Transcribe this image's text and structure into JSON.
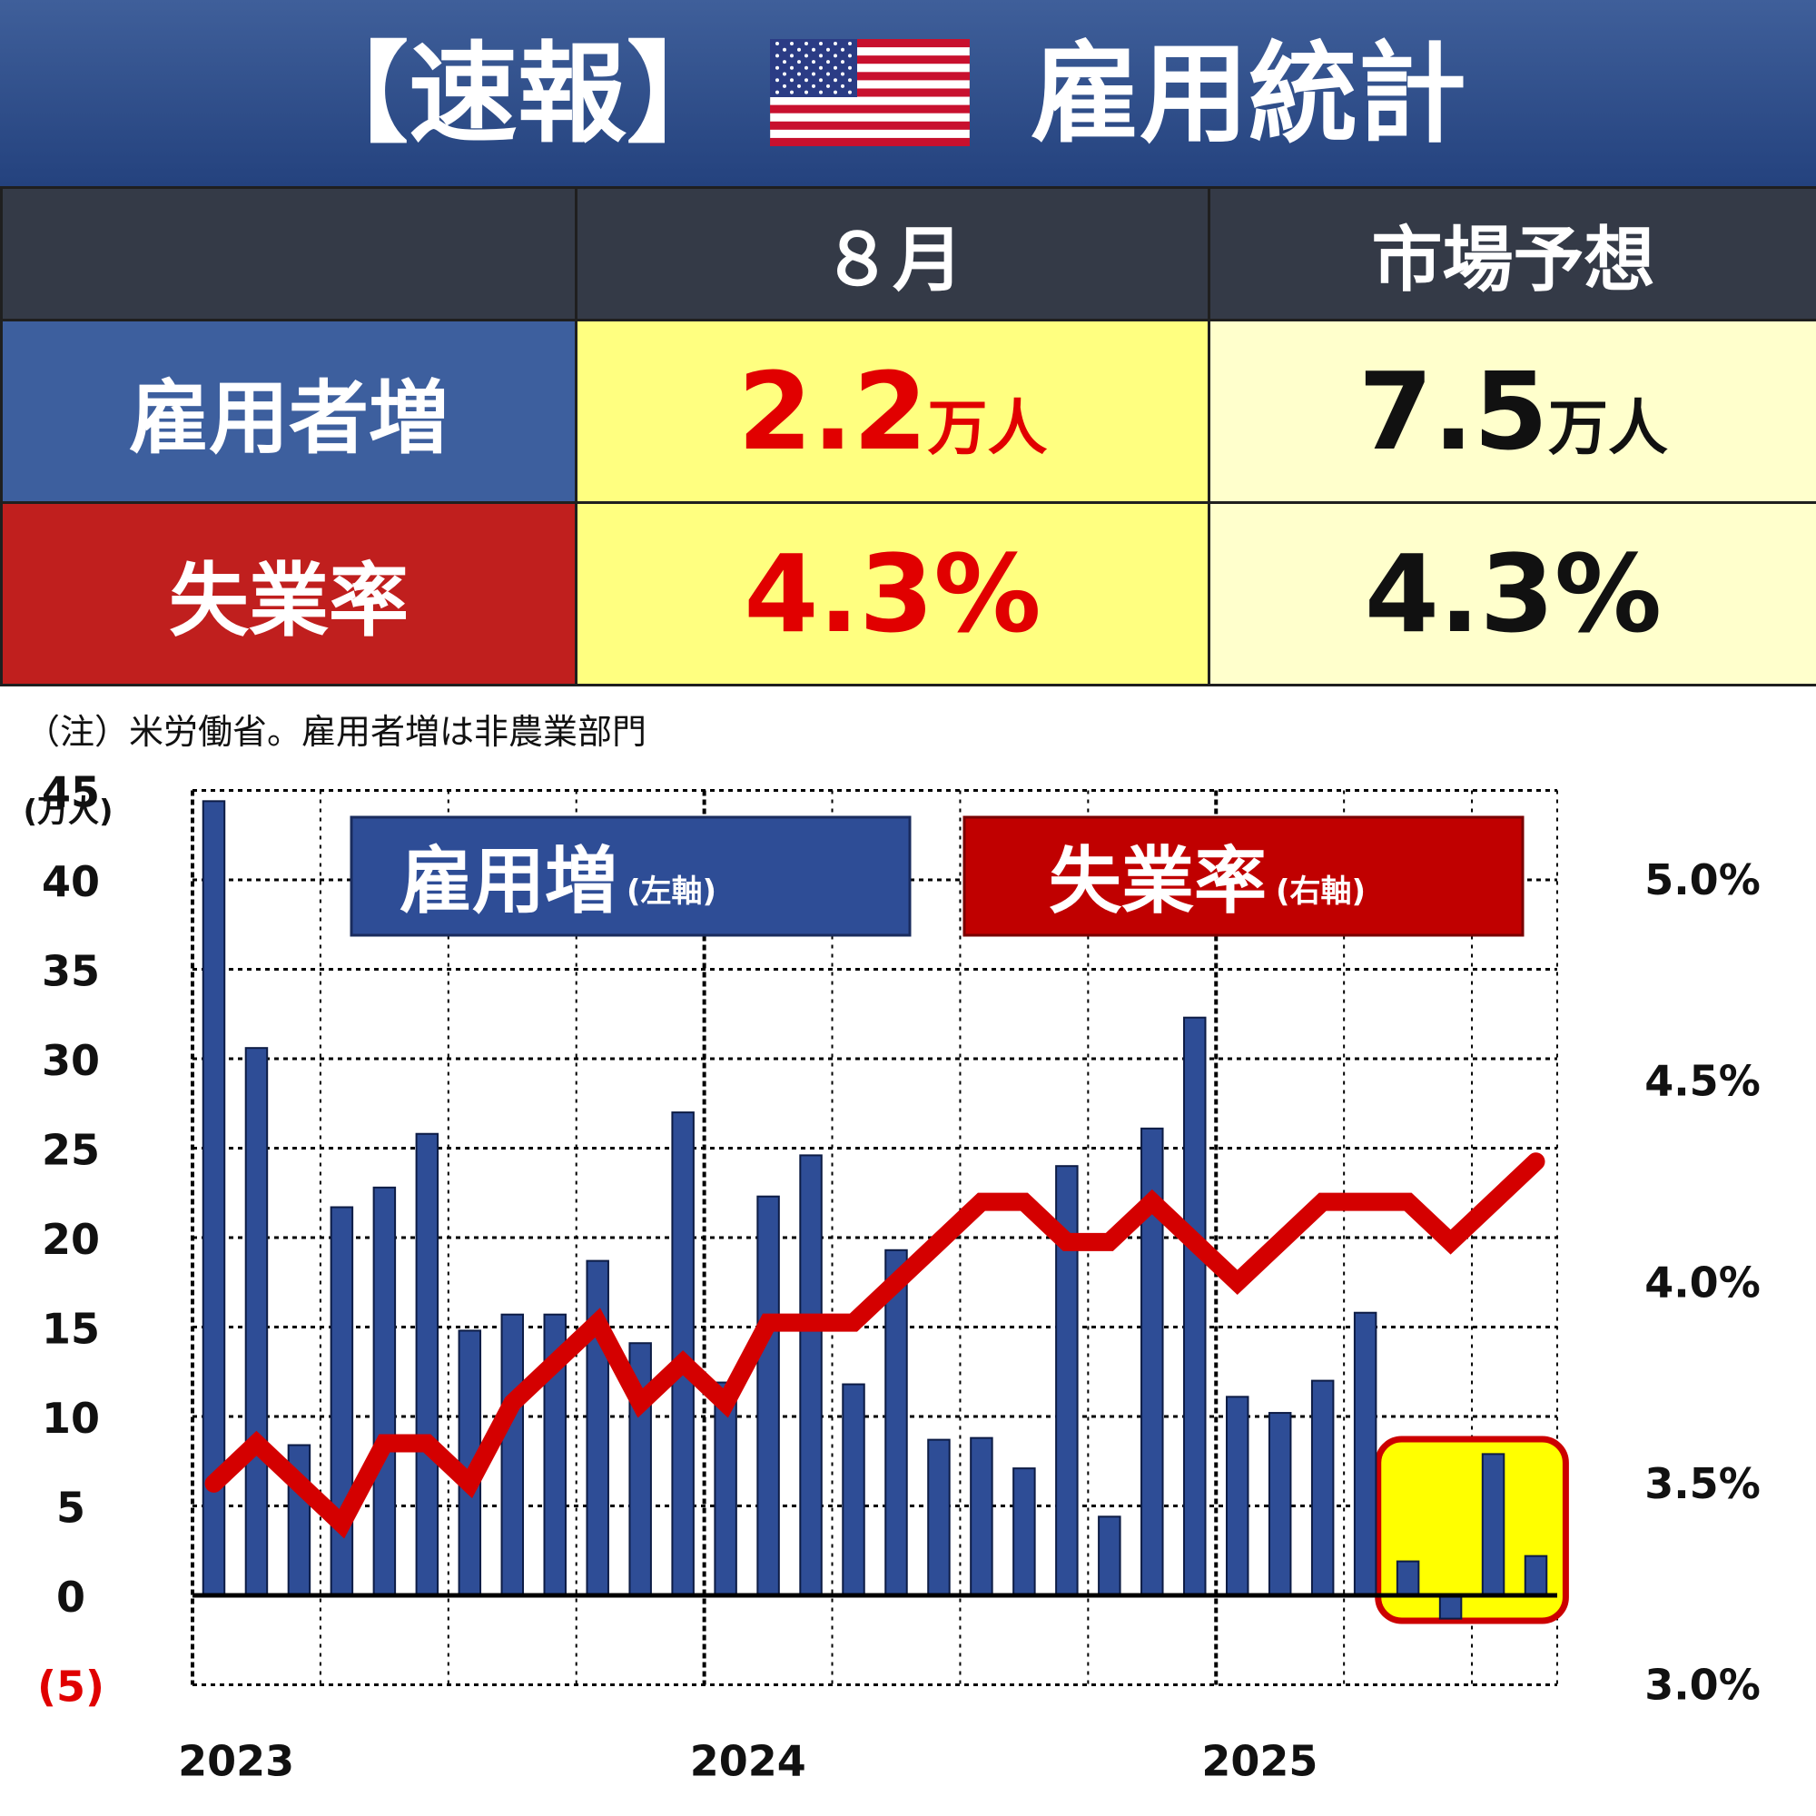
{
  "banner": {
    "left": "【速報】",
    "right": "雇用統計"
  },
  "summary": {
    "col_month": "８月",
    "col_forecast": "市場予想",
    "rows": [
      {
        "label": "雇用者増",
        "actual": "2.2",
        "actual_unit": "万人",
        "forecast": "7.5",
        "forecast_unit": "万人"
      },
      {
        "label": "失業率",
        "actual": "4.3%",
        "forecast": "4.3%"
      }
    ]
  },
  "note": "（注）米労働省。雇用者増は非農業部門",
  "colors": {
    "bar": "#2e4d96",
    "line": "#d40000",
    "highlight": "#ffff00",
    "highlight_border": "#cc0000"
  },
  "chart_data": {
    "type": "bar",
    "x": [
      "2023-01",
      "2023-02",
      "2023-03",
      "2023-04",
      "2023-05",
      "2023-06",
      "2023-07",
      "2023-08",
      "2023-09",
      "2023-10",
      "2023-11",
      "2023-12",
      "2024-01",
      "2024-02",
      "2024-03",
      "2024-04",
      "2024-05",
      "2024-06",
      "2024-07",
      "2024-08",
      "2024-09",
      "2024-10",
      "2024-11",
      "2024-12",
      "2025-01",
      "2025-02",
      "2025-03",
      "2025-04",
      "2025-05",
      "2025-06",
      "2025-07",
      "2025-08"
    ],
    "year_labels": [
      "2023",
      "2024",
      "2025"
    ],
    "series": [
      {
        "name": "雇用増",
        "axis_note": "(左軸)",
        "type": "bar",
        "values": [
          44.4,
          30.6,
          8.4,
          21.7,
          22.8,
          25.8,
          14.8,
          15.7,
          15.7,
          18.7,
          14.1,
          27.0,
          11.9,
          22.3,
          24.6,
          11.8,
          19.3,
          8.7,
          8.8,
          7.1,
          24.0,
          4.4,
          26.1,
          32.3,
          11.1,
          10.2,
          12.0,
          15.8,
          1.9,
          -1.3,
          7.9,
          2.2
        ]
      },
      {
        "name": "失業率",
        "axis_note": "(右軸)",
        "type": "line",
        "values": [
          3.5,
          3.6,
          3.5,
          3.4,
          3.6,
          3.6,
          3.5,
          3.7,
          3.8,
          3.9,
          3.7,
          3.8,
          3.7,
          3.9,
          3.9,
          3.9,
          4.0,
          4.1,
          4.2,
          4.2,
          4.1,
          4.1,
          4.2,
          4.1,
          4.0,
          4.1,
          4.2,
          4.2,
          4.2,
          4.1,
          4.2,
          4.3
        ]
      }
    ],
    "y_left": {
      "unit": "(万人)",
      "ticks": [
        "45",
        "40",
        "35",
        "30",
        "25",
        "20",
        "15",
        "10",
        "5",
        "0",
        "(5)"
      ],
      "range": [
        -5,
        45
      ]
    },
    "y_right": {
      "ticks": [
        "5.0%",
        "4.5%",
        "4.0%",
        "3.5%",
        "3.0%"
      ],
      "range": [
        3.0,
        5.0
      ]
    },
    "highlight_months": [
      "2025-05",
      "2025-06",
      "2025-07",
      "2025-08"
    ],
    "grid": true
  }
}
